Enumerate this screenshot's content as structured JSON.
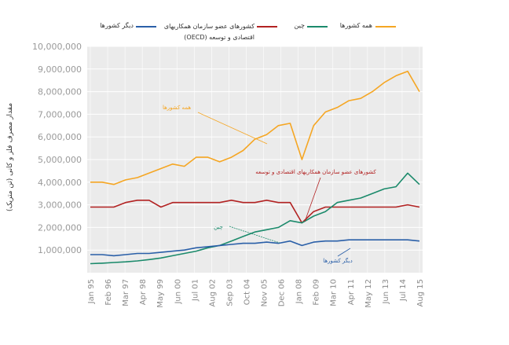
{
  "chart_data": {
    "type": "line",
    "ylabel": "مقدار مصرف فلز و کانی (تن متریک)",
    "ylim": [
      0,
      10000000
    ],
    "yticks": [
      1000000,
      2000000,
      3000000,
      4000000,
      5000000,
      6000000,
      7000000,
      8000000,
      9000000,
      10000000
    ],
    "ytick_labels": [
      "1,000,000",
      "2,000,000",
      "3,000,000",
      "4,000,000",
      "5,000,000",
      "6,000,000",
      "7,000,000",
      "8,000,000",
      "9,000,000",
      "10,000,000"
    ],
    "xtick_labels": [
      "Jan 95",
      "Feb 96",
      "Mar 97",
      "Apr 98",
      "May 99",
      "Jun 00",
      "Jul 01",
      "Aug 02",
      "Sep 03",
      "Oct 04",
      "Nov 05",
      "Dec 06",
      "Jan 08",
      "Feb 09",
      "Mar 10",
      "Apr 11",
      "May 12",
      "Jun 13",
      "Jul 14",
      "Aug 15"
    ],
    "grid": true,
    "legend_position": "top",
    "series": [
      {
        "name": "همه کشورها",
        "color": "#f5a623",
        "annotation": "همه کشورها",
        "values": [
          4000000,
          4000000,
          3900000,
          4100000,
          4200000,
          4400000,
          4600000,
          4800000,
          4700000,
          5100000,
          5100000,
          4900000,
          5100000,
          5400000,
          5900000,
          6100000,
          6500000,
          6600000,
          5000000,
          6500000,
          7100000,
          7300000,
          7600000,
          7700000,
          8000000,
          8400000,
          8700000,
          8900000,
          8000000
        ]
      },
      {
        "name": "کشورهای عضو سازمان همکاریهای اقتصادی و توسعه (OECD)",
        "color": "#b22222",
        "annotation": "کشورهای عضو سازمان همکاریهای اقتصادی و توسعه",
        "values": [
          2900000,
          2900000,
          2900000,
          3100000,
          3200000,
          3200000,
          2900000,
          3100000,
          3100000,
          3100000,
          3100000,
          3100000,
          3200000,
          3100000,
          3100000,
          3200000,
          3100000,
          3100000,
          2200000,
          2700000,
          2900000,
          2900000,
          2900000,
          2900000,
          2900000,
          2900000,
          2900000,
          3000000,
          2900000
        ]
      },
      {
        "name": "چین",
        "color": "#1b8a6b",
        "annotation": "چین",
        "values": [
          400000,
          420000,
          450000,
          480000,
          520000,
          580000,
          650000,
          750000,
          850000,
          950000,
          1100000,
          1200000,
          1400000,
          1600000,
          1800000,
          1900000,
          2000000,
          2300000,
          2200000,
          2500000,
          2700000,
          3100000,
          3200000,
          3300000,
          3500000,
          3700000,
          3800000,
          4400000,
          3900000
        ]
      },
      {
        "name": "دیگر کشورها",
        "color": "#2a5fa8",
        "annotation": "دیگر کشورها",
        "values": [
          800000,
          800000,
          750000,
          800000,
          850000,
          850000,
          900000,
          950000,
          1000000,
          1100000,
          1150000,
          1200000,
          1250000,
          1300000,
          1300000,
          1350000,
          1300000,
          1400000,
          1200000,
          1350000,
          1400000,
          1400000,
          1450000,
          1450000,
          1450000,
          1450000,
          1450000,
          1450000,
          1400000
        ]
      }
    ]
  }
}
